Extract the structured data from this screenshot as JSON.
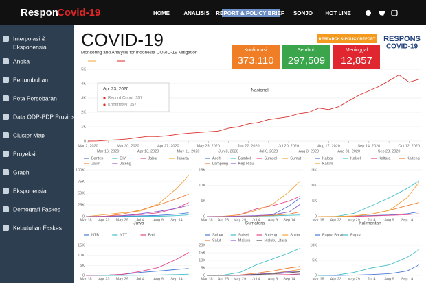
{
  "nav": {
    "brand": "Respon",
    "brand_accent": "Covid-19",
    "links": [
      "HOME",
      "ANALISIS",
      "REPORT & POLICY BRIEF",
      "SONJO",
      "HOT LINE"
    ]
  },
  "sidebar": {
    "items": [
      "Interpolasi &",
      "Eksponensial",
      "Angka",
      "Pertumbuhan",
      "Peta Persebaran",
      "Data ODP-PDP Provinsi",
      "Cluster Map",
      "Proyeksi",
      "Graph",
      "Eksponensial",
      "Demografi Faskes",
      "Kebutuhan Faskes"
    ]
  },
  "header": {
    "title": "COVID-19",
    "subtitle": "Monitoring and Analysis for Indonesia COVID-19 Mitigation",
    "button": "RESEARCH & POLICY REPORT",
    "logo_top": "RESPONS",
    "logo_bottom": "COVID-19"
  },
  "stats": [
    {
      "label": "Konfirmasi",
      "value": "373,110",
      "color": "#f07e26"
    },
    {
      "label": "Sembuh",
      "value": "297,509",
      "color": "#3aa54a"
    },
    {
      "label": "Meninggal",
      "value": "12,857",
      "color": "#e0262f"
    }
  ],
  "main_chart": {
    "type": "line",
    "label": "Nasional",
    "color": "#d9302c",
    "x": [
      0,
      7,
      14,
      21,
      28,
      35,
      42,
      49,
      56,
      63,
      70,
      77,
      84,
      91,
      98,
      105,
      112,
      119,
      126,
      133,
      140,
      147,
      154,
      161,
      168,
      175,
      182,
      189,
      196,
      203,
      210,
      217,
      224,
      231
    ],
    "values": [
      0,
      10,
      60,
      100,
      150,
      250,
      330,
      320,
      380,
      480,
      550,
      600,
      650,
      700,
      900,
      1000,
      1200,
      1300,
      1500,
      1600,
      1700,
      1900,
      2000,
      2300,
      2200,
      2400,
      2800,
      3200,
      3500,
      3800,
      4200,
      4600,
      4100,
      4300
    ],
    "xlim": [
      0,
      232
    ],
    "ylim": [
      0,
      5000
    ],
    "yticks": [
      0,
      {
        "value": 1000,
        "label": "1K"
      },
      {
        "value": 2000,
        "label": "2K"
      },
      {
        "value": 3000,
        "label": "3K"
      },
      {
        "value": 4000,
        "label": "4K"
      },
      {
        "value": 5000,
        "label": "5K"
      }
    ],
    "xticks": [
      {
        "value": 0,
        "label": "Mar 2, 2020"
      },
      {
        "value": 14,
        "label": "Mar 16, 2020"
      },
      {
        "value": 28,
        "label": "Mar 30, 2020"
      },
      {
        "value": 42,
        "label": "Apr 13, 2020"
      },
      {
        "value": 56,
        "label": "Apr 27, 2020"
      },
      {
        "value": 70,
        "label": "May 11, 2020"
      },
      {
        "value": 84,
        "label": "May 25, 2020"
      },
      {
        "value": 98,
        "label": "Jun 8, 2020"
      },
      {
        "value": 112,
        "label": "Jun 22, 2020"
      },
      {
        "value": 126,
        "label": "Jul 6, 2020"
      },
      {
        "value": 140,
        "label": "Jul 20, 2020"
      },
      {
        "value": 154,
        "label": "Aug 3, 2020"
      },
      {
        "value": 168,
        "label": "Aug 17, 2020"
      },
      {
        "value": 182,
        "label": "Aug 31, 2020"
      },
      {
        "value": 196,
        "label": "Sep 14, 2020"
      },
      {
        "value": 210,
        "label": "Sep 28, 2020"
      },
      {
        "value": 224,
        "label": "Oct 12, 2020"
      }
    ],
    "tooltip": {
      "date": "Apr 23, 2020",
      "lines": [
        "Record Count: 357",
        "Konfirmasi: 357"
      ]
    }
  },
  "panels": [
    {
      "title": "Jawa",
      "xlim": [
        0,
        210
      ],
      "ylim": [
        0,
        100000
      ],
      "x": [
        0,
        36,
        72,
        108,
        144,
        180,
        204
      ],
      "yticks": [
        0,
        {
          "value": 25000,
          "label": "25K"
        },
        {
          "value": 50000,
          "label": "50K"
        },
        {
          "value": 75000,
          "label": "75K"
        },
        {
          "value": 100000,
          "label": "100K"
        }
      ],
      "xticks": [
        {
          "value": 0,
          "label": "Mar 18"
        },
        {
          "value": 36,
          "label": "Apr 23"
        },
        {
          "value": 72,
          "label": "May 29"
        },
        {
          "value": 108,
          "label": "Jul 4"
        },
        {
          "value": 144,
          "label": "Aug 9"
        },
        {
          "value": 180,
          "label": "Sep 14"
        }
      ],
      "series": [
        {
          "name": "Banten",
          "color": "#4a78d6",
          "values": [
            0,
            300,
            800,
            1500,
            2500,
            5000,
            8000
          ]
        },
        {
          "name": "DIY",
          "color": "#3fbfc7",
          "values": [
            0,
            50,
            200,
            400,
            800,
            2000,
            3500
          ]
        },
        {
          "name": "Jabar",
          "color": "#e4478a",
          "values": [
            0,
            800,
            2000,
            4000,
            8000,
            18000,
            30000
          ]
        },
        {
          "name": "Jakarta",
          "color": "#f2a33a",
          "values": [
            0,
            4000,
            8000,
            12000,
            27000,
            60000,
            88000
          ]
        },
        {
          "name": "Jatim",
          "color": "#f27b2b",
          "values": [
            0,
            500,
            5000,
            14000,
            25000,
            38000,
            48000
          ]
        },
        {
          "name": "Jateng",
          "color": "#8e5bc9",
          "values": [
            0,
            300,
            1500,
            6000,
            11000,
            18000,
            24000
          ]
        }
      ]
    },
    {
      "title": "Sumatera",
      "xlim": [
        0,
        210
      ],
      "ylim": [
        0,
        15000
      ],
      "x": [
        0,
        36,
        72,
        108,
        144,
        180,
        204
      ],
      "yticks": [
        0,
        {
          "value": 5000,
          "label": "5K"
        },
        {
          "value": 10000,
          "label": "10K"
        },
        {
          "value": 15000,
          "label": "15K"
        }
      ],
      "xticks": [
        {
          "value": 0,
          "label": "Mar 18"
        },
        {
          "value": 36,
          "label": "Apr 23"
        },
        {
          "value": 72,
          "label": "May 29"
        },
        {
          "value": 108,
          "label": "Jul 4"
        },
        {
          "value": 144,
          "label": "Aug 9"
        },
        {
          "value": 180,
          "label": "Sep 14"
        }
      ],
      "series": [
        {
          "name": "Aceh",
          "color": "#4a78d6",
          "values": [
            0,
            10,
            50,
            100,
            600,
            3500,
            6000
          ]
        },
        {
          "name": "Bambel",
          "color": "#3fbfc7",
          "values": [
            0,
            10,
            50,
            150,
            250,
            400,
            500
          ]
        },
        {
          "name": "Sumsel",
          "color": "#e4478a",
          "values": [
            0,
            50,
            600,
            2500,
            3500,
            5000,
            6500
          ]
        },
        {
          "name": "Sumut",
          "color": "#f2a33a",
          "values": [
            0,
            100,
            500,
            2000,
            4000,
            8000,
            11500
          ]
        },
        {
          "name": "Lampung",
          "color": "#f27b2b",
          "values": [
            0,
            20,
            100,
            200,
            400,
            800,
            1500
          ]
        },
        {
          "name": "Kep Riau",
          "color": "#8e5bc9",
          "values": [
            0,
            20,
            150,
            300,
            600,
            1500,
            4000
          ]
        }
      ]
    },
    {
      "title": "Kalimantan",
      "xlim": [
        0,
        210
      ],
      "ylim": [
        0,
        15000
      ],
      "x": [
        0,
        36,
        72,
        108,
        144,
        180,
        204
      ],
      "yticks": [
        0,
        {
          "value": 5000,
          "label": "5K"
        },
        {
          "value": 10000,
          "label": "10K"
        },
        {
          "value": 15000,
          "label": "15K"
        }
      ],
      "xticks": [
        {
          "value": 0,
          "label": "Mar 18"
        },
        {
          "value": 36,
          "label": "Apr 23"
        },
        {
          "value": 72,
          "label": "May 29"
        },
        {
          "value": 108,
          "label": "Jul 4"
        },
        {
          "value": 144,
          "label": "Aug 9"
        },
        {
          "value": 180,
          "label": "Sep 14"
        }
      ],
      "series": [
        {
          "name": "Kalbar",
          "color": "#4a78d6",
          "values": [
            0,
            50,
            150,
            300,
            500,
            900,
            1500
          ]
        },
        {
          "name": "Kalsel",
          "color": "#3fbfc7",
          "values": [
            0,
            50,
            1000,
            3500,
            6000,
            9000,
            11500
          ]
        },
        {
          "name": "Kaltara",
          "color": "#e4478a",
          "values": [
            0,
            10,
            50,
            200,
            400,
            600,
            900
          ]
        },
        {
          "name": "Kalteng",
          "color": "#f27b2b",
          "values": [
            0,
            20,
            200,
            800,
            2000,
            3500,
            4500
          ]
        },
        {
          "name": "Kaltim",
          "color": "#f2a33a",
          "values": [
            0,
            50,
            200,
            800,
            2000,
            6000,
            11000
          ]
        }
      ]
    },
    {
      "xlim": [
        0,
        210
      ],
      "ylim": [
        0,
        15000
      ],
      "x": [
        0,
        36,
        72,
        108,
        144,
        180,
        204
      ],
      "yticks": [
        0,
        {
          "value": 5000,
          "label": "5K"
        },
        {
          "value": 10000,
          "label": "10K"
        },
        {
          "value": 15000,
          "label": "15K"
        }
      ],
      "xticks": [
        {
          "value": 0,
          "label": "Mar 18"
        },
        {
          "value": 36,
          "label": "Apr 23"
        },
        {
          "value": 72,
          "label": "May 29"
        },
        {
          "value": 108,
          "label": "Jul 4"
        },
        {
          "value": 144,
          "label": "Aug 9"
        },
        {
          "value": 180,
          "label": "Sep 14"
        }
      ],
      "series": [
        {
          "name": "NTB",
          "color": "#4a78d6",
          "values": [
            0,
            100,
            500,
            1500,
            2200,
            3000,
            3500
          ]
        },
        {
          "name": "NTT",
          "color": "#3fbfc7",
          "values": [
            0,
            10,
            50,
            100,
            200,
            400,
            600
          ]
        },
        {
          "name": "Bali",
          "color": "#e4478a",
          "values": [
            0,
            100,
            500,
            2000,
            4000,
            8000,
            11500
          ]
        }
      ]
    },
    {
      "xlim": [
        0,
        210
      ],
      "ylim": [
        0,
        20000
      ],
      "x": [
        0,
        36,
        72,
        108,
        144,
        180,
        204
      ],
      "yticks": [
        0,
        {
          "value": 5000,
          "label": "5K"
        },
        {
          "value": 10000,
          "label": "10K"
        },
        {
          "value": 15000,
          "label": "15K"
        },
        {
          "value": 20000,
          "label": "20K"
        }
      ],
      "xticks": [
        {
          "value": 0,
          "label": "Mar 18"
        },
        {
          "value": 36,
          "label": "Apr 23"
        },
        {
          "value": 72,
          "label": "May 29"
        },
        {
          "value": 108,
          "label": "Jul 4"
        },
        {
          "value": 144,
          "label": "Aug 9"
        },
        {
          "value": 180,
          "label": "Sep 14"
        }
      ],
      "series": [
        {
          "name": "Sulbar",
          "color": "#4a78d6",
          "values": [
            0,
            10,
            50,
            150,
            300,
            500,
            800
          ]
        },
        {
          "name": "Sulsel",
          "color": "#3fbfc7",
          "values": [
            0,
            200,
            2000,
            7000,
            11000,
            15000,
            18000
          ]
        },
        {
          "name": "Sulteng",
          "color": "#e4478a",
          "values": [
            0,
            20,
            100,
            200,
            300,
            600,
            1000
          ]
        },
        {
          "name": "Sultra",
          "color": "#f2a33a",
          "values": [
            0,
            30,
            200,
            500,
            1500,
            3000,
            4000
          ]
        },
        {
          "name": "Salut",
          "color": "#f27b2b",
          "values": [
            0,
            50,
            300,
            1500,
            3000,
            5000,
            6000
          ]
        },
        {
          "name": "Maluku",
          "color": "#8e5bc9",
          "values": [
            0,
            20,
            200,
            800,
            1500,
            2500,
            3000
          ]
        },
        {
          "name": "Maluku Utara",
          "color": "#555555",
          "values": [
            0,
            20,
            150,
            600,
            1000,
            1800,
            2500
          ]
        }
      ]
    },
    {
      "xlim": [
        0,
        210
      ],
      "ylim": [
        0,
        10000
      ],
      "x": [
        0,
        36,
        72,
        108,
        144,
        180,
        204
      ],
      "yticks": [
        0,
        {
          "value": 5000,
          "label": "5K"
        },
        {
          "value": 10000,
          "label": "10K"
        }
      ],
      "xticks": [
        {
          "value": 0,
          "label": "Mar 18"
        },
        {
          "value": 36,
          "label": "Apr 23"
        },
        {
          "value": 72,
          "label": "May 29"
        },
        {
          "value": 108,
          "label": "Jul 4"
        },
        {
          "value": 144,
          "label": "Aug 9"
        },
        {
          "value": 180,
          "label": "Sep 14"
        }
      ],
      "series": [
        {
          "name": "Papua Barat",
          "color": "#4a78d6",
          "values": [
            0,
            10,
            100,
            300,
            600,
            1500,
            3500
          ]
        },
        {
          "name": "Papua",
          "color": "#3fbfc7",
          "values": [
            0,
            100,
            1000,
            2500,
            3500,
            6000,
            8500
          ]
        }
      ]
    }
  ]
}
